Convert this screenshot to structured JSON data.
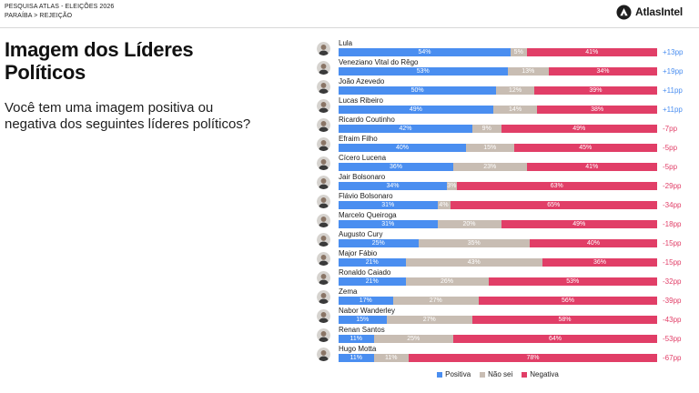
{
  "header": {
    "survey": "PESQUISA ATLAS - ELEIÇÕES 2026",
    "breadcrumb": "PARAÍBA > REJEIÇÃO",
    "brand": "AtlasIntel",
    "brand_icon": "atlasintel-logo-icon"
  },
  "title_lines": [
    "Imagem dos Líderes",
    "Políticos"
  ],
  "subtitle_lines": [
    "Você tem uma imagem positiva ou",
    "negativa dos seguintes líderes políticos?"
  ],
  "avatar_icon": "person-photo-avatar",
  "chart_data": {
    "type": "bar",
    "orientation": "horizontal",
    "stacked": true,
    "legend": "bottom",
    "grid": false,
    "unit": "%",
    "categories": [
      "Lula",
      "Veneziano Vital do Rêgo",
      "João Azevedo",
      "Lucas Ribeiro",
      "Ricardo Coutinho",
      "Efraim Filho",
      "Cícero Lucena",
      "Jair Bolsonaro",
      "Flávio Bolsonaro",
      "Marcelo Queiroga",
      "Augusto Cury",
      "Major Fábio",
      "Ronaldo Caiado",
      "Zema",
      "Nabor Wanderley",
      "Renan Santos",
      "Hugo Motta"
    ],
    "series": [
      {
        "name": "Positiva",
        "color": "#4a8ef0",
        "values": [
          54,
          53,
          50,
          49,
          42,
          40,
          36,
          34,
          31,
          31,
          25,
          21,
          21,
          17,
          15,
          11,
          11
        ]
      },
      {
        "name": "Não sei",
        "color": "#c8bdb3",
        "values": [
          5,
          13,
          12,
          14,
          9,
          15,
          23,
          3,
          4,
          20,
          35,
          43,
          26,
          27,
          27,
          25,
          11
        ]
      },
      {
        "name": "Negativa",
        "color": "#e13e67",
        "values": [
          41,
          34,
          39,
          38,
          49,
          45,
          41,
          63,
          65,
          49,
          40,
          36,
          53,
          56,
          58,
          64,
          78
        ]
      }
    ],
    "net": [
      "+13pp",
      "+19pp",
      "+11pp",
      "+11pp",
      "-7pp",
      "-5pp",
      "-5pp",
      "-29pp",
      "-34pp",
      "-18pp",
      "-15pp",
      "-15pp",
      "-32pp",
      "-39pp",
      "-43pp",
      "-53pp",
      "-67pp"
    ]
  }
}
